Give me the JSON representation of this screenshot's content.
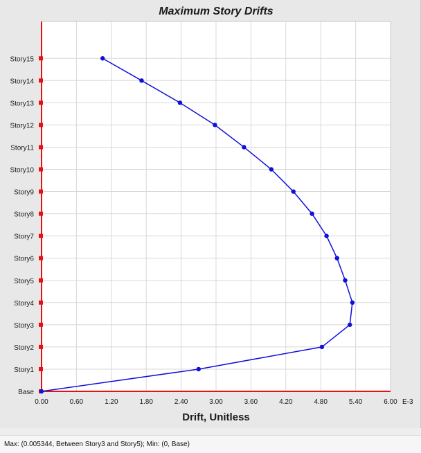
{
  "chart_data": {
    "type": "line",
    "title": "Maximum Story Drifts",
    "xlabel": "Drift, Unitless",
    "ylabel": "",
    "x_unit_suffix": "E-3",
    "x_ticks": [
      "0.00",
      "0.60",
      "1.20",
      "1.80",
      "2.40",
      "3.00",
      "3.60",
      "4.20",
      "4.80",
      "5.40",
      "6.00"
    ],
    "xlim": [
      0,
      6.0
    ],
    "categories": [
      "Base",
      "Story1",
      "Story2",
      "Story3",
      "Story4",
      "Story5",
      "Story6",
      "Story7",
      "Story8",
      "Story9",
      "Story10",
      "Story11",
      "Story12",
      "Story13",
      "Story14",
      "Story15"
    ],
    "series": [
      {
        "values": [
          0.0,
          2.7,
          4.82,
          5.3,
          5.344,
          5.22,
          5.08,
          4.9,
          4.65,
          4.33,
          3.95,
          3.48,
          2.98,
          2.38,
          1.72,
          1.05
        ]
      }
    ],
    "grid": true,
    "colors": {
      "series_line": "#1010d8",
      "axis_markers": "#e81010",
      "grid": "#d8d8d8",
      "plot_bg": "#ffffff"
    }
  },
  "status": {
    "text": "Max: (0.005344, Between Story3 and Story5);   Min: (0, Base)"
  }
}
